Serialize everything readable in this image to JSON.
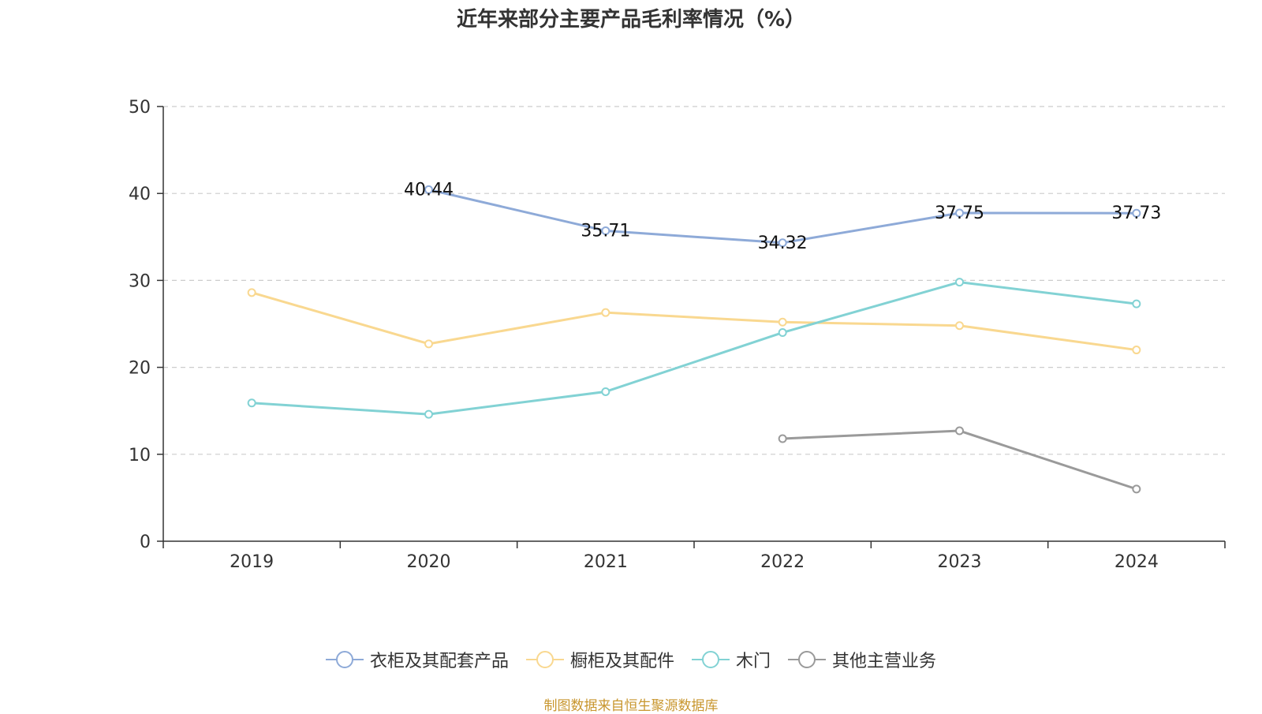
{
  "source_note": "制图数据来自恒生聚源数据库",
  "colors": {
    "series": [
      "#8eaad8",
      "#f9d890",
      "#82d2d4",
      "#9a9a9a"
    ],
    "axis": "#333333",
    "grid": "#cccccc",
    "text": "#333333",
    "source": "#c8962e"
  },
  "chart_data": {
    "type": "line",
    "title": "近年来部分主要产品毛利率情况（%）",
    "xlabel": "",
    "ylabel": "",
    "x": [
      "2019",
      "2020",
      "2021",
      "2022",
      "2023",
      "2024"
    ],
    "ylim": [
      0,
      50
    ],
    "yticks": [
      "0",
      "10",
      "20",
      "30",
      "40",
      "50"
    ],
    "grid": true,
    "legend_position": "bottom",
    "series": [
      {
        "name": "衣柜及其配套产品",
        "values": [
          null,
          40.44,
          35.71,
          34.32,
          37.75,
          37.73
        ],
        "labels": [
          "",
          "40.44",
          "35.71",
          "34.32",
          "37.75",
          "37.73"
        ]
      },
      {
        "name": "橱柜及其配件",
        "values": [
          28.6,
          22.7,
          26.3,
          25.2,
          24.8,
          22.0
        ],
        "labels": [
          "",
          "",
          "",
          "",
          "",
          ""
        ]
      },
      {
        "name": "木门",
        "values": [
          15.9,
          14.6,
          17.2,
          24.0,
          29.8,
          27.3
        ],
        "labels": [
          "",
          "",
          "",
          "",
          "",
          ""
        ]
      },
      {
        "name": "其他主营业务",
        "values": [
          null,
          null,
          null,
          11.8,
          12.7,
          6.0
        ],
        "labels": [
          "",
          "",
          "",
          "",
          "",
          ""
        ]
      }
    ]
  }
}
